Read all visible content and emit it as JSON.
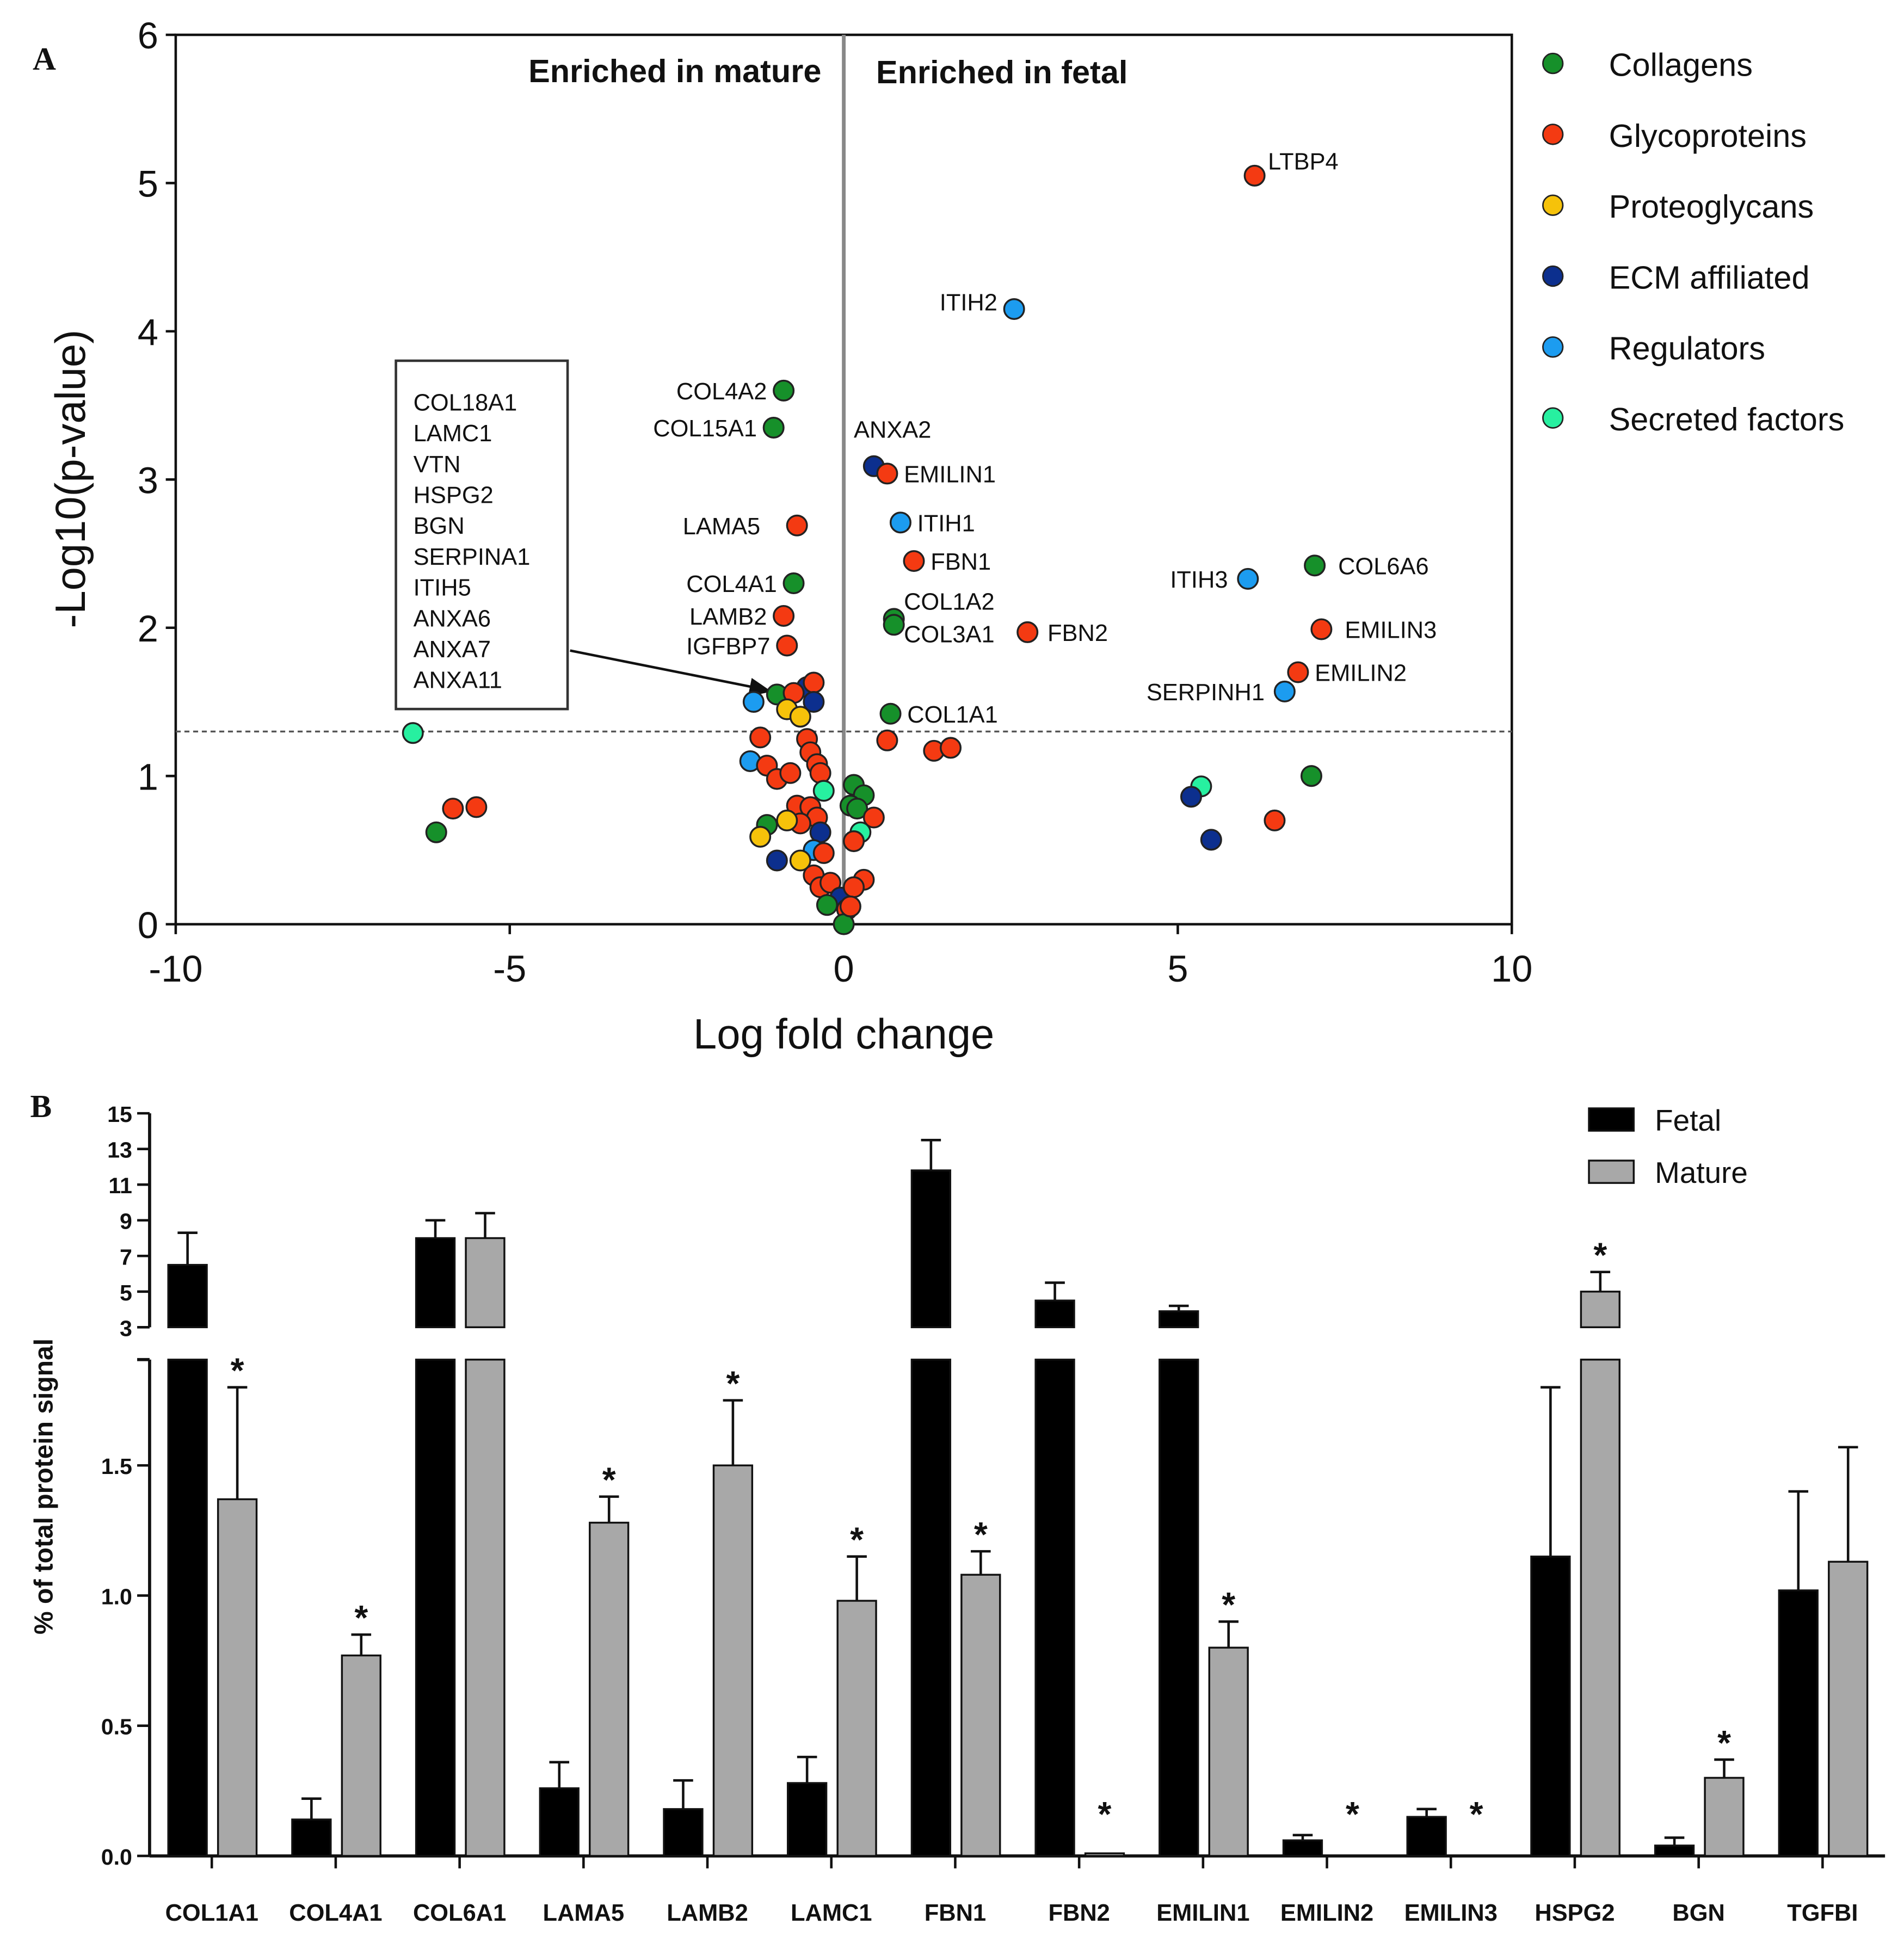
{
  "colors": {
    "Collagens": "#16902a",
    "Glycoproteins": "#f43a12",
    "Proteoglycans": "#f6c20a",
    "ECM affiliated": "#0c2f8e",
    "Regulators": "#1c9cf0",
    "Secreted factors": "#27f0a0",
    "fetal": "#000000",
    "mature": "#a8a8a8"
  },
  "chart_data": [
    {
      "panel": "A",
      "type": "scatter",
      "xlabel": "Log fold change",
      "ylabel": "-Log10(p-value)",
      "xlim": [
        -10,
        10
      ],
      "ylim": [
        0,
        6
      ],
      "xticks": [
        "-10",
        "-5",
        "0",
        "5",
        "10"
      ],
      "yticks": [
        "0",
        "1",
        "2",
        "3",
        "4",
        "5",
        "6"
      ],
      "threshold_y": 1.3,
      "region_labels": [
        "Enriched in mature",
        "Enriched in fetal"
      ],
      "legend": [
        "Collagens",
        "Glycoproteins",
        "Proteoglycans",
        "ECM affiliated",
        "Regulators",
        "Secreted factors"
      ],
      "legend_position": "right",
      "box_labels": [
        "COL18A1",
        "LAMC1",
        "VTN",
        "HSPG2",
        "BGN",
        "SERPINA1",
        "ITIH5",
        "ANXA6",
        "ANXA7",
        "ANXA11"
      ],
      "points": [
        {
          "x": 6.15,
          "y": 5.05,
          "c": "Glycoproteins",
          "label": "LTBP4",
          "lx": 0.2,
          "ly": 0.1,
          "anchor": "start"
        },
        {
          "x": 2.55,
          "y": 4.15,
          "c": "Regulators",
          "label": "ITIH2",
          "lx": -0.25,
          "ly": 0.05,
          "anchor": "end"
        },
        {
          "x": -0.9,
          "y": 3.6,
          "c": "Collagens",
          "label": "COL4A2",
          "lx": -0.25,
          "ly": 0,
          "anchor": "end"
        },
        {
          "x": -1.05,
          "y": 3.35,
          "c": "Collagens",
          "label": "COL15A1",
          "lx": -0.25,
          "ly": 0,
          "anchor": "end"
        },
        {
          "x": 0.45,
          "y": 3.09,
          "c": "ECM affiliated",
          "label": "ANXA2",
          "lx": -0.3,
          "ly": 0.25,
          "anchor": "start"
        },
        {
          "x": 0.65,
          "y": 3.04,
          "c": "Glycoproteins",
          "label": "EMILIN1",
          "lx": 0.25,
          "ly": 0,
          "anchor": "start"
        },
        {
          "x": -0.7,
          "y": 2.69,
          "c": "Glycoproteins",
          "label": "LAMA5",
          "lx": -0.55,
          "ly": 0,
          "anchor": "end"
        },
        {
          "x": 0.85,
          "y": 2.71,
          "c": "Regulators",
          "label": "ITIH1",
          "lx": 0.25,
          "ly": 0,
          "anchor": "start"
        },
        {
          "x": 1.05,
          "y": 2.45,
          "c": "Glycoproteins",
          "label": "FBN1",
          "lx": 0.25,
          "ly": 0,
          "anchor": "start"
        },
        {
          "x": -0.75,
          "y": 2.3,
          "c": "Collagens",
          "label": "COL4A1",
          "lx": -0.25,
          "ly": 0,
          "anchor": "end"
        },
        {
          "x": -0.9,
          "y": 2.08,
          "c": "Glycoproteins",
          "label": "LAMB2",
          "lx": -0.25,
          "ly": 0,
          "anchor": "end"
        },
        {
          "x": 0.75,
          "y": 2.06,
          "c": "Collagens",
          "label": "COL1A2",
          "lx": 0.15,
          "ly": 0.12,
          "anchor": "start"
        },
        {
          "x": 0.75,
          "y": 2.02,
          "c": "Collagens",
          "label": "COL3A1",
          "lx": 0.15,
          "ly": -0.06,
          "anchor": "start"
        },
        {
          "x": 2.75,
          "y": 1.97,
          "c": "Glycoproteins",
          "label": "FBN2",
          "lx": 0.3,
          "ly": 0,
          "anchor": "start"
        },
        {
          "x": -0.85,
          "y": 1.88,
          "c": "Glycoproteins",
          "label": "IGFBP7",
          "lx": -0.25,
          "ly": 0,
          "anchor": "end"
        },
        {
          "x": 0.7,
          "y": 1.42,
          "c": "Collagens",
          "label": "COL1A1",
          "lx": 0.25,
          "ly": 0,
          "anchor": "start"
        },
        {
          "x": 6.05,
          "y": 2.33,
          "c": "Regulators",
          "label": "ITIH3",
          "lx": -0.3,
          "ly": 0,
          "anchor": "end"
        },
        {
          "x": 7.05,
          "y": 2.42,
          "c": "Collagens",
          "label": "COL6A6",
          "lx": 0.35,
          "ly": 0,
          "anchor": "start"
        },
        {
          "x": 7.15,
          "y": 1.99,
          "c": "Glycoproteins",
          "label": "EMILIN3",
          "lx": 0.35,
          "ly": 0,
          "anchor": "start"
        },
        {
          "x": 6.8,
          "y": 1.7,
          "c": "Glycoproteins",
          "label": "EMILIN2",
          "lx": 0.25,
          "ly": 0,
          "anchor": "start"
        },
        {
          "x": 6.6,
          "y": 1.57,
          "c": "Regulators",
          "label": "SERPINH1",
          "lx": -0.3,
          "ly": 0,
          "anchor": "end"
        },
        {
          "x": -6.45,
          "y": 1.29,
          "c": "Secreted factors"
        },
        {
          "x": -5.85,
          "y": 0.78,
          "c": "Glycoproteins"
        },
        {
          "x": -5.5,
          "y": 0.79,
          "c": "Glycoproteins"
        },
        {
          "x": -6.1,
          "y": 0.62,
          "c": "Collagens"
        },
        {
          "x": 5.35,
          "y": 0.93,
          "c": "Secreted factors"
        },
        {
          "x": 5.2,
          "y": 0.86,
          "c": "ECM affiliated"
        },
        {
          "x": 5.5,
          "y": 0.57,
          "c": "ECM affiliated"
        },
        {
          "x": 6.45,
          "y": 0.7,
          "c": "Glycoproteins"
        },
        {
          "x": 7.0,
          "y": 1.0,
          "c": "Collagens"
        },
        {
          "x": 0.65,
          "y": 1.24,
          "c": "Glycoproteins"
        },
        {
          "x": 1.35,
          "y": 1.17,
          "c": "Glycoproteins"
        },
        {
          "x": 1.6,
          "y": 1.19,
          "c": "Glycoproteins"
        },
        {
          "x": -0.55,
          "y": 1.6,
          "c": "ECM affiliated"
        },
        {
          "x": -0.45,
          "y": 1.63,
          "c": "Glycoproteins"
        },
        {
          "x": -1.35,
          "y": 1.5,
          "c": "Regulators"
        },
        {
          "x": -1.0,
          "y": 1.55,
          "c": "Collagens"
        },
        {
          "x": -0.75,
          "y": 1.56,
          "c": "Glycoproteins"
        },
        {
          "x": -0.45,
          "y": 1.5,
          "c": "ECM affiliated"
        },
        {
          "x": -0.85,
          "y": 1.45,
          "c": "Proteoglycans"
        },
        {
          "x": -0.65,
          "y": 1.4,
          "c": "Proteoglycans"
        },
        {
          "x": -1.25,
          "y": 1.26,
          "c": "Glycoproteins"
        },
        {
          "x": -0.55,
          "y": 1.25,
          "c": "Glycoproteins"
        },
        {
          "x": -0.5,
          "y": 1.16,
          "c": "Glycoproteins"
        },
        {
          "x": -1.4,
          "y": 1.1,
          "c": "Regulators"
        },
        {
          "x": -1.15,
          "y": 1.07,
          "c": "Glycoproteins"
        },
        {
          "x": -0.4,
          "y": 1.08,
          "c": "Glycoproteins"
        },
        {
          "x": -1.0,
          "y": 0.98,
          "c": "Glycoproteins"
        },
        {
          "x": -0.8,
          "y": 1.02,
          "c": "Glycoproteins"
        },
        {
          "x": -0.35,
          "y": 1.02,
          "c": "Glycoproteins"
        },
        {
          "x": -0.3,
          "y": 0.9,
          "c": "Secreted factors"
        },
        {
          "x": -0.7,
          "y": 0.8,
          "c": "Glycoproteins"
        },
        {
          "x": -0.5,
          "y": 0.79,
          "c": "Glycoproteins"
        },
        {
          "x": -0.4,
          "y": 0.72,
          "c": "Glycoproteins"
        },
        {
          "x": -0.65,
          "y": 0.68,
          "c": "Glycoproteins"
        },
        {
          "x": -0.85,
          "y": 0.7,
          "c": "Proteoglycans"
        },
        {
          "x": -1.15,
          "y": 0.67,
          "c": "Collagens"
        },
        {
          "x": -1.25,
          "y": 0.59,
          "c": "Proteoglycans"
        },
        {
          "x": -0.35,
          "y": 0.62,
          "c": "ECM affiliated"
        },
        {
          "x": -0.45,
          "y": 0.5,
          "c": "Regulators"
        },
        {
          "x": -1.0,
          "y": 0.43,
          "c": "ECM affiliated"
        },
        {
          "x": -0.65,
          "y": 0.43,
          "c": "Proteoglycans"
        },
        {
          "x": -0.3,
          "y": 0.48,
          "c": "Glycoproteins"
        },
        {
          "x": -0.45,
          "y": 0.33,
          "c": "Glycoproteins"
        },
        {
          "x": -0.35,
          "y": 0.25,
          "c": "Glycoproteins"
        },
        {
          "x": -0.2,
          "y": 0.28,
          "c": "Glycoproteins"
        },
        {
          "x": -0.05,
          "y": 0.18,
          "c": "ECM affiliated"
        },
        {
          "x": -0.25,
          "y": 0.13,
          "c": "Collagens"
        },
        {
          "x": 0.05,
          "y": 0.1,
          "c": "Glycoproteins"
        },
        {
          "x": 0.0,
          "y": 0.0,
          "c": "Collagens"
        },
        {
          "x": 0.15,
          "y": 0.94,
          "c": "Collagens"
        },
        {
          "x": 0.3,
          "y": 0.87,
          "c": "Collagens"
        },
        {
          "x": 0.1,
          "y": 0.8,
          "c": "Collagens"
        },
        {
          "x": 0.2,
          "y": 0.78,
          "c": "Collagens"
        },
        {
          "x": 0.45,
          "y": 0.72,
          "c": "Glycoproteins"
        },
        {
          "x": 0.25,
          "y": 0.62,
          "c": "Secreted factors"
        },
        {
          "x": 0.15,
          "y": 0.56,
          "c": "Glycoproteins"
        },
        {
          "x": 0.3,
          "y": 0.3,
          "c": "Glycoproteins"
        },
        {
          "x": 0.15,
          "y": 0.25,
          "c": "Glycoproteins"
        },
        {
          "x": 0.1,
          "y": 0.12,
          "c": "Glycoproteins"
        }
      ]
    },
    {
      "panel": "B",
      "type": "bar",
      "ylabel": "% of total protein signal",
      "yticks_upper": [
        "3",
        "5",
        "7",
        "9",
        "11",
        "13",
        "15"
      ],
      "yticks_lower": [
        "0.0",
        "0.5",
        "1.0",
        "1.5"
      ],
      "ylim_lower": [
        0,
        1.9
      ],
      "ylim_upper": [
        3,
        15
      ],
      "categories": [
        "COL1A1",
        "COL4A1",
        "COL6A1",
        "LAMA5",
        "LAMB2",
        "LAMC1",
        "FBN1",
        "FBN2",
        "EMILIN1",
        "EMILIN2",
        "EMILIN3",
        "HSPG2",
        "BGN",
        "TGFBI"
      ],
      "legend": [
        "Fetal",
        "Mature"
      ],
      "legend_position": "top-right",
      "significance_mark": "*",
      "series": [
        {
          "name": "Fetal",
          "values": [
            6.5,
            0.14,
            8.0,
            0.26,
            0.18,
            0.28,
            11.8,
            4.5,
            3.9,
            0.06,
            0.15,
            1.15,
            0.04,
            1.02
          ],
          "errors": [
            8.3,
            0.22,
            9.0,
            0.36,
            0.29,
            0.38,
            13.5,
            5.5,
            4.2,
            0.08,
            0.18,
            1.8,
            0.07,
            1.4
          ]
        },
        {
          "name": "Mature",
          "values": [
            1.37,
            0.77,
            8.0,
            1.28,
            1.5,
            0.98,
            1.08,
            0.01,
            0.8,
            0,
            0,
            5.0,
            0.3,
            1.13
          ],
          "errors": [
            1.8,
            0.85,
            9.4,
            1.38,
            1.75,
            1.15,
            1.17,
            0.01,
            0.9,
            0,
            0,
            6.1,
            0.37,
            1.57
          ]
        }
      ],
      "significant": [
        true,
        true,
        false,
        true,
        true,
        true,
        true,
        true,
        true,
        true,
        true,
        true,
        true,
        false
      ]
    }
  ],
  "panel_labels": [
    "A",
    "B"
  ]
}
